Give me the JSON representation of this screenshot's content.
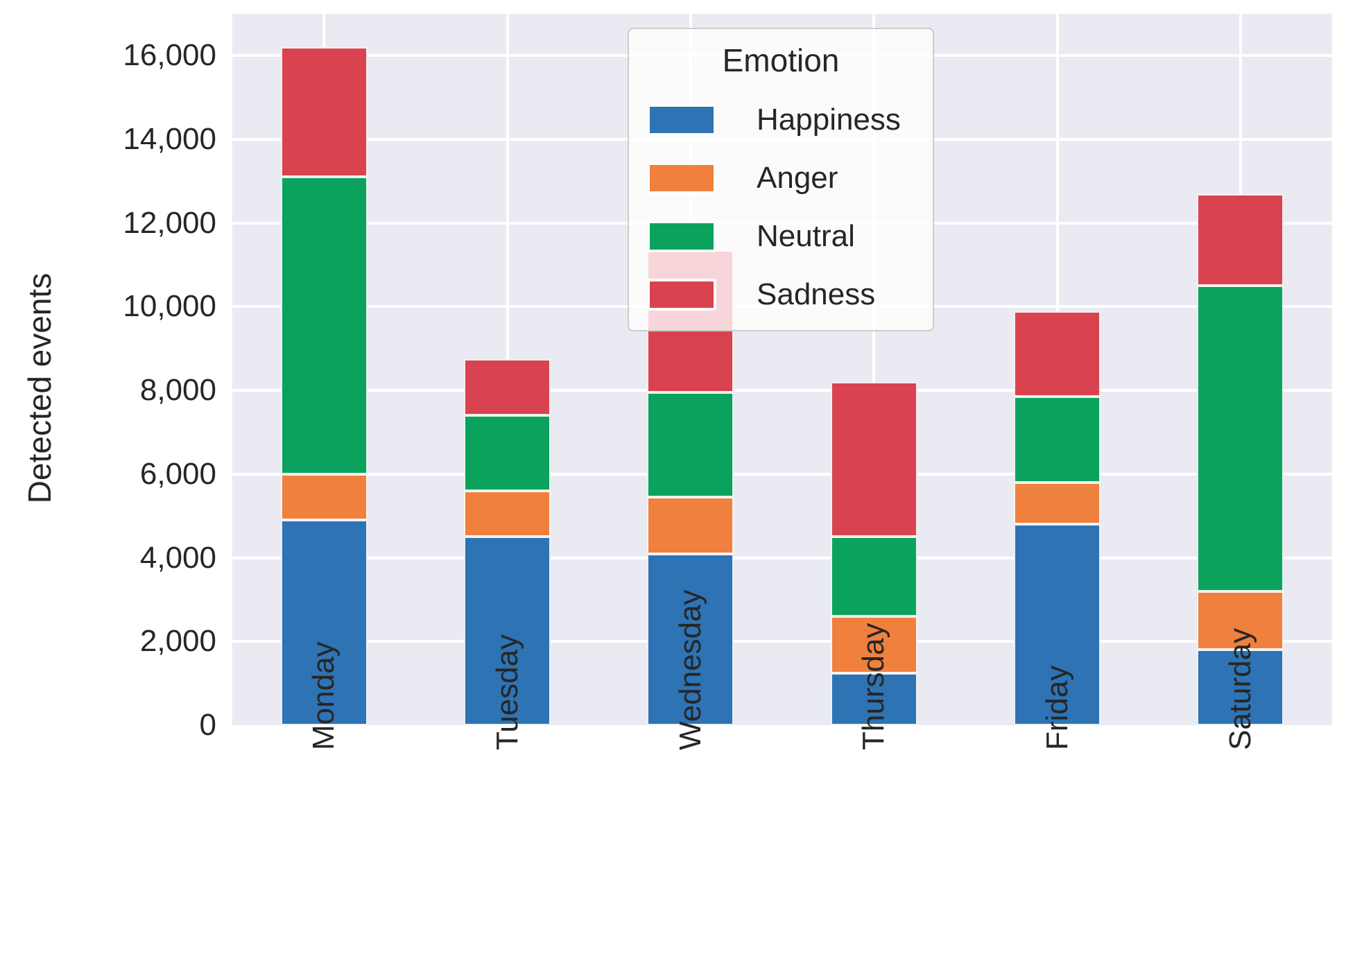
{
  "figure": {
    "background": "#ffffff",
    "plot_background": "#eaeaf2",
    "grid_color": "#ffffff",
    "text_color": "#262626"
  },
  "axes": {
    "ylabel": "Detected events",
    "ytick_labels": [
      "0",
      "2,000",
      "4,000",
      "6,000",
      "8,000",
      "10,000",
      "12,000",
      "14,000",
      "16,000"
    ],
    "xtick_labels": [
      "Monday",
      "Tuesday",
      "Wednesday",
      "Thursday",
      "Friday",
      "Saturday"
    ]
  },
  "legend": {
    "title": "Emotion",
    "items": [
      {
        "label": "Happiness",
        "color": "#2e73b4"
      },
      {
        "label": "Anger",
        "color": "#f0803e"
      },
      {
        "label": "Neutral",
        "color": "#0ba25e"
      },
      {
        "label": "Sadness",
        "color": "#d9424f"
      }
    ]
  },
  "chart_data": {
    "type": "bar",
    "stacked": true,
    "title": "",
    "xlabel": "",
    "ylabel": "Detected events",
    "categories": [
      "Monday",
      "Tuesday",
      "Wednesday",
      "Thursday",
      "Friday",
      "Saturday"
    ],
    "series": [
      {
        "name": "Happiness",
        "color": "#2e73b4",
        "values": [
          4900,
          4500,
          4100,
          1250,
          4800,
          1800
        ]
      },
      {
        "name": "Anger",
        "color": "#f0803e",
        "values": [
          1100,
          1100,
          1350,
          1350,
          1000,
          1400
        ]
      },
      {
        "name": "Neutral",
        "color": "#0ba25e",
        "values": [
          7100,
          1800,
          2500,
          1900,
          2050,
          7300
        ]
      },
      {
        "name": "Sadness",
        "color": "#d9424f",
        "values": [
          3100,
          1350,
          3400,
          3700,
          2050,
          2200
        ]
      }
    ],
    "stack_totals": [
      16200,
      8750,
      11350,
      8200,
      9900,
      12700
    ],
    "ylim": [
      0,
      17000
    ],
    "yticks": [
      0,
      2000,
      4000,
      6000,
      8000,
      10000,
      12000,
      14000,
      16000
    ],
    "grid": true,
    "legend_title": "Emotion",
    "legend_position": "upper center-right"
  }
}
